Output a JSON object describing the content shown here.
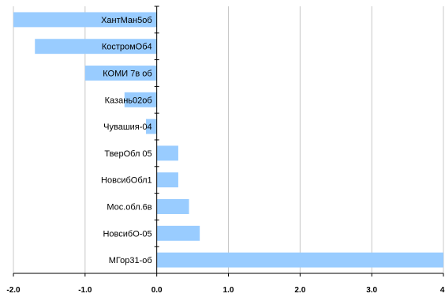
{
  "chart_data": {
    "type": "bar",
    "orientation": "horizontal",
    "categories": [
      "ХантМан5об",
      "КостромОб4",
      "КОМИ 7в об",
      "Казань02об",
      "Чувашия-04",
      "ТверОбл 05",
      "НовсибОбл1",
      "Мос.обл.6в",
      "НовсибО-05",
      "МГор31-об"
    ],
    "values": [
      -2.0,
      -1.7,
      -1.0,
      -0.45,
      -0.15,
      0.3,
      0.3,
      0.45,
      0.6,
      4.0
    ],
    "xlim": [
      -2.0,
      4.0
    ],
    "xticks": [
      -2.0,
      -1.0,
      0.0,
      1.0,
      2.0,
      3.0,
      4.0
    ],
    "xtick_labels": [
      "-2.0",
      "-1.0",
      "0.0",
      "1.0",
      "2.0",
      "3.0",
      "4."
    ],
    "title": "",
    "xlabel": "",
    "ylabel": "",
    "grid": "vertical",
    "bar_color": "#99ccff",
    "grid_color": "#c8c8c8",
    "axis_color": "#000000"
  }
}
